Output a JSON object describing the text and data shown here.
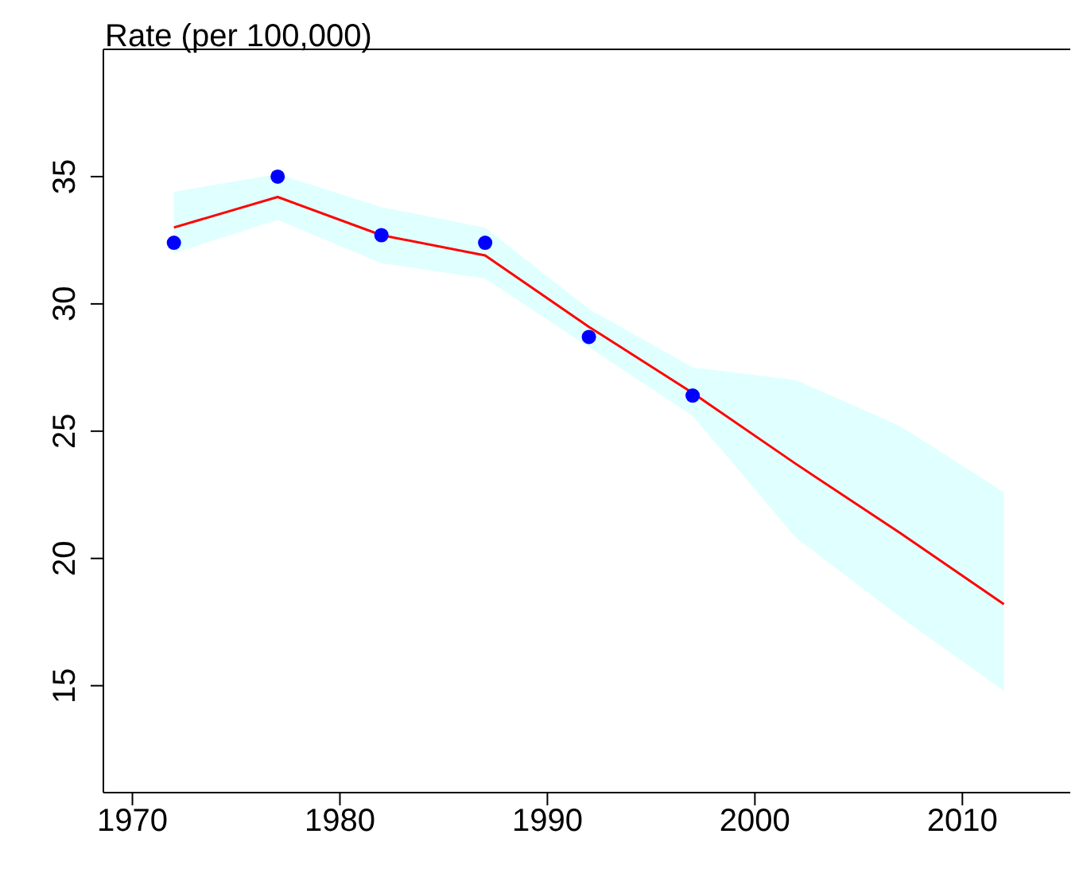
{
  "chart_data": {
    "type": "line",
    "ylabel": "Rate (per 100,000)",
    "xlim": [
      1968.6,
      2015.2
    ],
    "xticks": [
      1970,
      1980,
      1990,
      2000,
      2010
    ],
    "ylim": [
      10.8,
      40
    ],
    "yticks": [
      15,
      20,
      25,
      30,
      35
    ],
    "grid": false,
    "series": [
      {
        "color": "#ff0000",
        "marker": "none",
        "x": [
          1972,
          1977,
          1982,
          1987,
          1992,
          1997,
          2002,
          2007,
          2012
        ],
        "values": [
          33.0,
          34.2,
          32.7,
          31.9,
          29.1,
          26.5,
          23.7,
          21.0,
          18.2
        ],
        "lower": [
          32.0,
          33.3,
          31.6,
          31.0,
          28.3,
          25.6,
          20.8,
          17.7,
          14.8
        ],
        "upper": [
          34.4,
          35.1,
          33.8,
          33.0,
          29.8,
          27.5,
          27.0,
          25.2,
          22.6
        ]
      },
      {
        "type": "scatter",
        "color": "#0000ff",
        "marker": "circle",
        "x": [
          1972,
          1977,
          1982,
          1987,
          1992,
          1997
        ],
        "values": [
          32.4,
          35.0,
          32.7,
          32.4,
          28.7,
          26.4
        ]
      }
    ]
  }
}
